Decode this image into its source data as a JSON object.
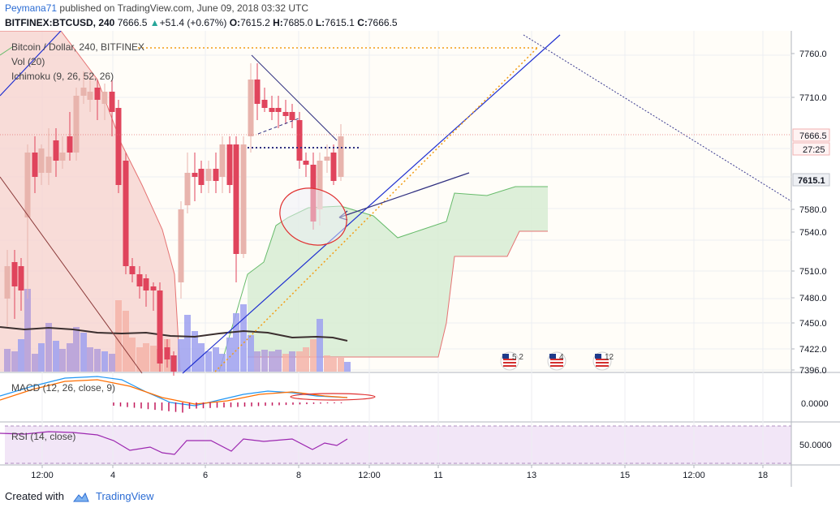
{
  "header": {
    "author": "Peymana71",
    "published_text": "published on TradingView.com, June 09, 2018 03:32 UTC",
    "symbol": "BITFINEX:BTCUSD, 240",
    "last": "7666.5",
    "change": "+51.4 (+0.67%)",
    "o_label": "O:",
    "o_value": "7615.2",
    "h_label": "H:",
    "h_value": "7685.0",
    "l_label": "L:",
    "l_value": "7615.1",
    "c_label": "C:",
    "c_value": "7666.5"
  },
  "legend": {
    "title": "Bitcoin / Dollar, 240, BITFINEX",
    "vol": "Vol (20)",
    "ichimoku": "Ichimoku (9, 26, 52, 26)",
    "macd": "MACD (12, 26, close, 9)",
    "rsi": "RSI (14, close)"
  },
  "price_axis": {
    "ticks": [
      "7760.0",
      "7710.0",
      "7580.0",
      "7540.0",
      "7510.0",
      "7480.0",
      "7450.0",
      "7422.0",
      "7396.0"
    ],
    "last_price_tag": "7666.5",
    "countdown_tag": "27:25",
    "low_tag": "7615.1"
  },
  "macd_axis": {
    "ticks": [
      "0.0000"
    ]
  },
  "rsi_axis": {
    "ticks": [
      "50.0000"
    ]
  },
  "time_axis": {
    "ticks": [
      "12:00",
      "4",
      "6",
      "8",
      "12:00",
      "11",
      "13",
      "15",
      "12:00",
      "18"
    ]
  },
  "events": [
    {
      "icon": "us-flag-icon",
      "label": "5 2"
    },
    {
      "icon": "us-flag-icon",
      "label": "4"
    },
    {
      "icon": "us-flag-icon",
      "label": "12"
    }
  ],
  "colors": {
    "bull": "#e8b4ad",
    "bear": "#e0445c",
    "blue_line": "#2030d0",
    "orange": "#f39c12",
    "cloud_green": "#d7ecd4",
    "cloud_red": "#f6d3cf",
    "rsi_band": "#f2e6f7",
    "rsi_line": "#9c27b0",
    "tv_blue": "#2b6cd4"
  },
  "footer": {
    "created_with": "Created with",
    "brand": "TradingView"
  }
}
